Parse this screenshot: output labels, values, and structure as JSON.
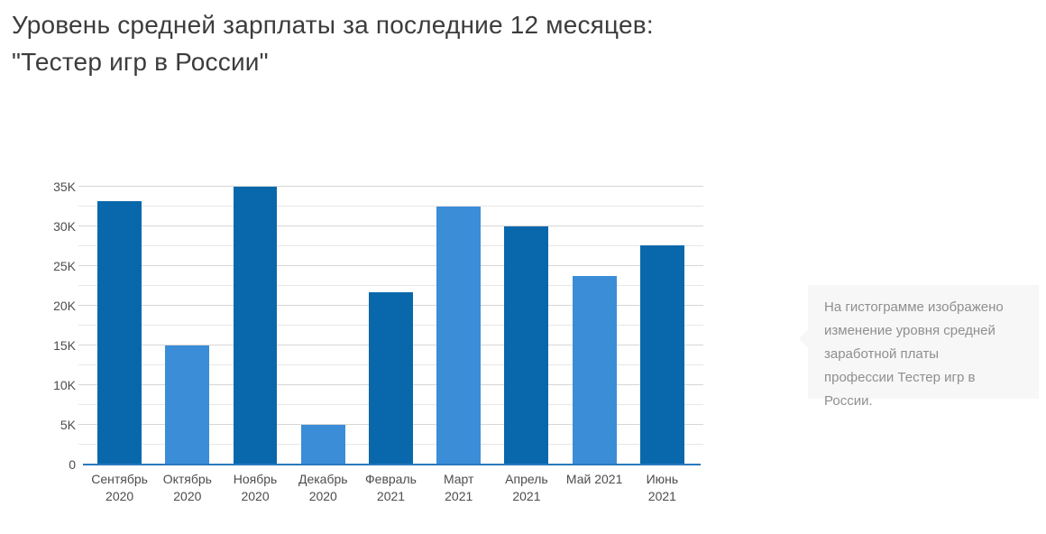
{
  "page": {
    "title_line1": "Уровень средней зарплаты за последние 12 месяцев:",
    "title_line2": "\"Тестер игр в России\""
  },
  "tooltip": {
    "text": "На гистограмме изображено изменение уровня средней заработной платы профессии Тестер игр в России."
  },
  "colors": {
    "title_text": "#3c3c3c",
    "axis_text": "#4d4d4d",
    "bar_dark": "#0968ab",
    "bar_light": "#3b8dd8",
    "axis_line": "#2a79bd",
    "grid_major": "#d6d6d6",
    "grid_minor": "#e7e7e7",
    "tooltip_bg": "#f7f7f7",
    "tooltip_text": "#8f8f8f"
  },
  "chart_data": {
    "type": "bar",
    "title": "Уровень средней зарплаты за последние 12 месяцев: \"Тестер игр в России\"",
    "categories": [
      "Сентябрь 2020",
      "Октябрь 2020",
      "Ноябрь 2020",
      "Декабрь 2020",
      "Февраль 2021",
      "Март 2021",
      "Апрель 2021",
      "Май 2021",
      "Июнь 2021"
    ],
    "values": [
      33200,
      15000,
      35000,
      5000,
      21700,
      32500,
      30000,
      23700,
      27600
    ],
    "bar_palette": [
      "dark",
      "light",
      "dark",
      "light",
      "dark",
      "light",
      "dark",
      "light",
      "dark"
    ],
    "x_label_lines": [
      [
        "Сентябрь",
        "2020"
      ],
      [
        "Октябрь",
        "2020"
      ],
      [
        "Ноябрь",
        "2020"
      ],
      [
        "Декабрь",
        "2020"
      ],
      [
        "Февраль",
        "2021"
      ],
      [
        "Март",
        "2021"
      ],
      [
        "Апрель",
        "2021"
      ],
      [
        "Май 2021"
      ],
      [
        "Июнь",
        "2021"
      ]
    ],
    "xlabel": "",
    "ylabel": "",
    "ylim": [
      0,
      35000
    ],
    "ytick_values": [
      0,
      5000,
      10000,
      15000,
      20000,
      25000,
      30000,
      35000
    ],
    "ytick_labels": [
      "0",
      "5K",
      "10K",
      "15K",
      "20K",
      "25K",
      "30K",
      "35K"
    ],
    "minor_step": 2500,
    "major_step": 5000,
    "grid": true,
    "legend": false
  }
}
